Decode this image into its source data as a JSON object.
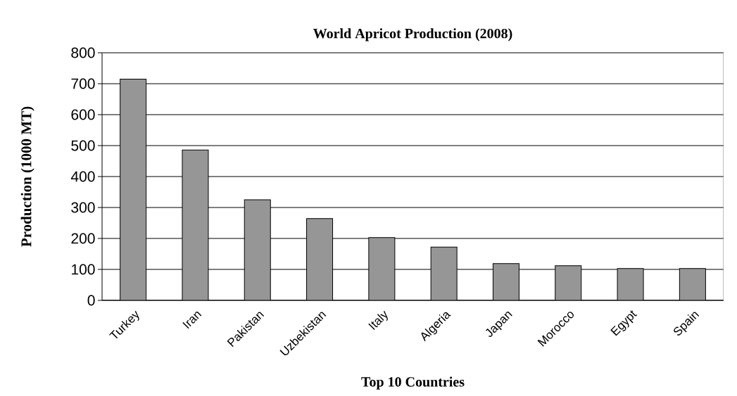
{
  "chart_data": {
    "type": "bar",
    "title": "World Apricot Production (2008)",
    "xlabel": "Top 10 Countries",
    "ylabel": "Production (1000 MT)",
    "categories": [
      "Turkey",
      "Iran",
      "Pakistan",
      "Uzbekistan",
      "Italy",
      "Algeria",
      "Japan",
      "Morocco",
      "Egypt",
      "Spain"
    ],
    "values": [
      715,
      486,
      325,
      264,
      203,
      172,
      119,
      112,
      103,
      103
    ],
    "color": "#969696",
    "ylim": [
      0,
      800
    ],
    "yticks": [
      0,
      100,
      200,
      300,
      400,
      500,
      600,
      700,
      800
    ],
    "grid": "y"
  }
}
